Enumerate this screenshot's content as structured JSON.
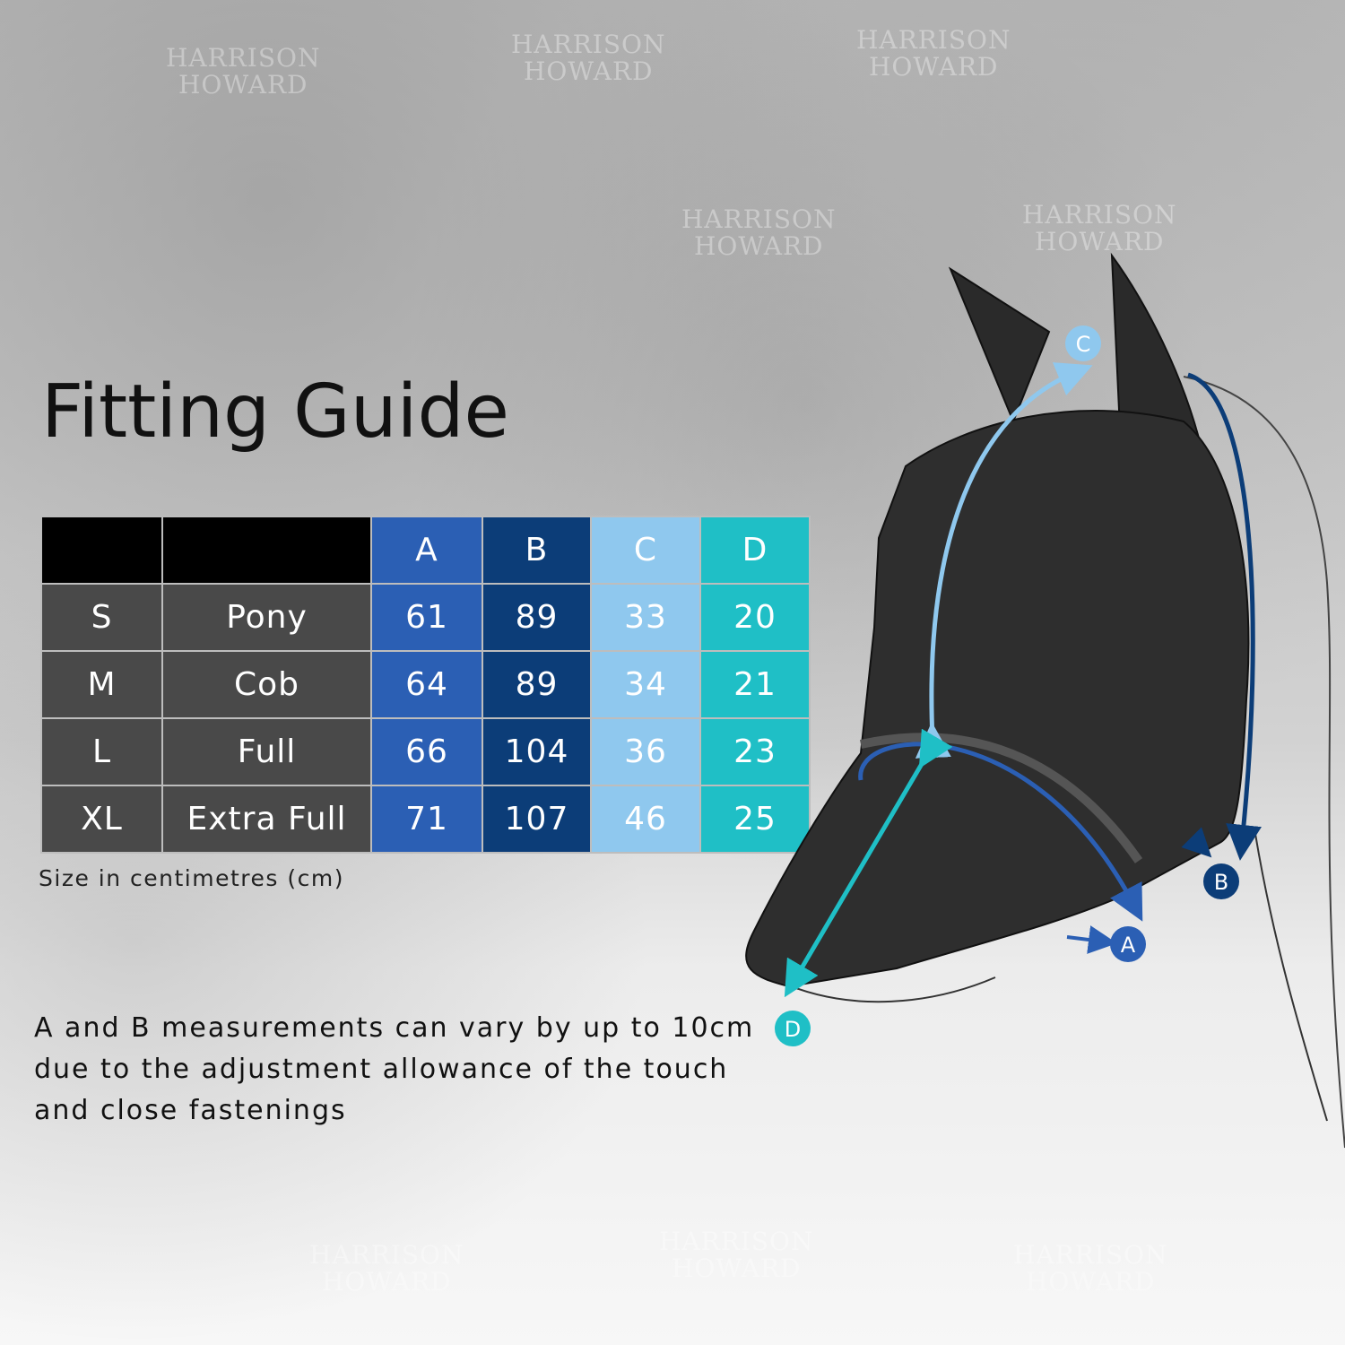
{
  "title": "Fitting Guide",
  "watermark": "HARRISON HOWARD",
  "table": {
    "headers": [
      "",
      "",
      "A",
      "B",
      "C",
      "D"
    ],
    "rows": [
      {
        "size": "S",
        "type": "Pony",
        "A": "61",
        "B": "89",
        "C": "33",
        "D": "20"
      },
      {
        "size": "M",
        "type": "Cob",
        "A": "64",
        "B": "89",
        "C": "34",
        "D": "21"
      },
      {
        "size": "L",
        "type": "Full",
        "A": "66",
        "B": "104",
        "C": "36",
        "D": "23"
      },
      {
        "size": "XL",
        "type": "Extra Full",
        "A": "71",
        "B": "107",
        "C": "46",
        "D": "25"
      }
    ]
  },
  "caption": "Size in centimetres (cm)",
  "note": "A and B measurements can vary by up to 10cm due to the adjustment allowance of the touch and close fastenings",
  "diagram_labels": {
    "A": "A",
    "B": "B",
    "C": "C",
    "D": "D"
  },
  "colors": {
    "A": "#2b5fb4",
    "B": "#0c3d78",
    "C": "#8fc8ee",
    "D": "#1fbfc6"
  }
}
